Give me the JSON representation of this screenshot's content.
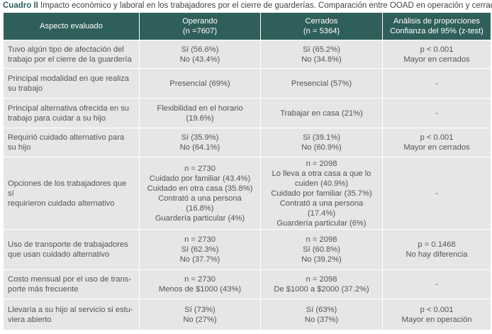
{
  "caption": {
    "label": "Cuadro II",
    "text": " Impacto económico y laboral en los trabajadores por el cierre de guarderías. Comparación entre OOAD en operación y cerrados"
  },
  "header": {
    "aspect": [
      "Aspecto evaluado"
    ],
    "operando": [
      "Operando",
      "(n =7607)"
    ],
    "cerrados": [
      "Cerrados",
      "(n = 5364)"
    ],
    "analisis": [
      "Análisis de proporciones",
      "Confianza del 95% (z-test)"
    ]
  },
  "rows": [
    {
      "aspect": [
        "Tuvo algún tipo de afectación del",
        "trabajo por el cierre de la guardería"
      ],
      "operando": [
        "Sí (56.6%)",
        "No (43.4%)"
      ],
      "cerrados": [
        "Sí (65.2%)",
        "No (34.8%)"
      ],
      "analisis": [
        "p < 0.001",
        "Mayor en cerrados"
      ]
    },
    {
      "aspect": [
        "Principal modalidad en que realiza",
        "su trabajo"
      ],
      "operando": [
        "Presencial (69%)"
      ],
      "cerrados": [
        "Presencial (57%)"
      ],
      "analisis": [
        "-"
      ]
    },
    {
      "aspect": [
        "Principal alternativa ofrecida en su",
        "trabajo para cuidar a su hijo"
      ],
      "operando": [
        "Flexibilidad en el horario",
        "(19.6%)"
      ],
      "cerrados": [
        "Trabajar en casa (21%)"
      ],
      "analisis": [
        "-"
      ]
    },
    {
      "aspect": [
        "Requirió cuidado alternativo para",
        "su hijo"
      ],
      "operando": [
        "Sí (35.9%)",
        "No (64.1%)"
      ],
      "cerrados": [
        "Sí (39.1%)",
        "No (60.9%)"
      ],
      "analisis": [
        "p < 0.001",
        "Mayor en cerrados"
      ]
    },
    {
      "aspect": [
        "Opciones de los trabajadores que sí",
        "requirieron cuidado alternativo"
      ],
      "operando": [
        "n = 2730",
        "Cuidado por familiar (43.4%)",
        "Cuidado en otra casa (35.8%)",
        "Contrató a una persona (16.8%)",
        "Guardería particular (4%)"
      ],
      "cerrados": [
        "n = 2098",
        "Lo lleva a otra casa a que lo",
        "cuiden (40.9%)",
        "Cuidado por familiar (35.7%)",
        "Contrató a una persona (17.4%)",
        "Guardería particular (6%)"
      ],
      "analisis": [
        "-"
      ]
    },
    {
      "aspect": [
        "Uso de transporte de trabajadores",
        "que usan cuidado alternativo"
      ],
      "operando": [
        "n = 2730",
        "Sí (62.3%)",
        "No (37.7%)"
      ],
      "cerrados": [
        "n = 2098",
        "Sí (60.8%)",
        "No (39.2%)"
      ],
      "analisis": [
        "p = 0.1468",
        "No hay diferencia"
      ]
    },
    {
      "aspect": [
        "Costo mensual por el uso de trans-",
        "porte más frecuente"
      ],
      "operando": [
        "n = 2730",
        "Menos de $1000 (43%)"
      ],
      "cerrados": [
        "n = 2098",
        "De $1000 a $2000 (37.2%)"
      ],
      "analisis": [
        "-"
      ]
    },
    {
      "aspect": [
        "Llevaría a su hijo al servicio si estu-",
        "viera abierto"
      ],
      "operando": [
        "Sí (73%)",
        "No (27%)"
      ],
      "cerrados": [
        "Sí (63%)",
        "No (37%)"
      ],
      "analisis": [
        "p < 0.001",
        "Mayor en operación"
      ]
    }
  ]
}
